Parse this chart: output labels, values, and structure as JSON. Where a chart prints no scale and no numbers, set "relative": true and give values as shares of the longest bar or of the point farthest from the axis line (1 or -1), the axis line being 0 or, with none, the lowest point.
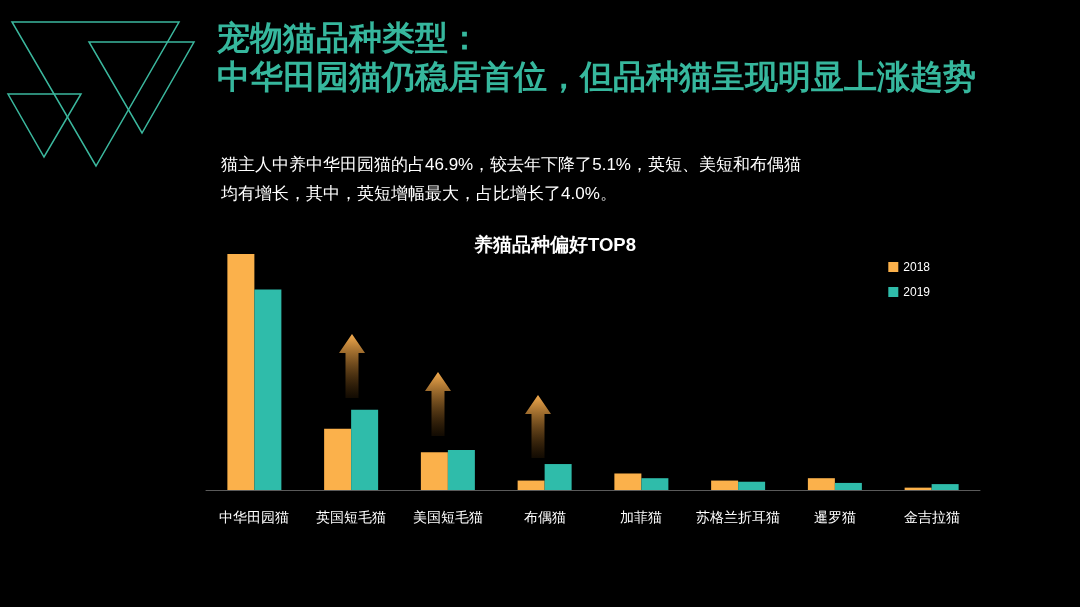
{
  "chart_data": {
    "type": "bar",
    "title": "宠物猫品种类型：",
    "subtitle": "中华田园猫仍稳居首位，但品种猫呈现明显上涨趋势",
    "annotations": [
      "猫主人中养中华田园猫的占46.9%，较去年下降了5.1%，英短、美短和布偶猫均有增长，其中，英短增幅最大，占比增长了4.0%。",
      "养猫品种偏好TOP8"
    ],
    "categories": [
      "中华田园猫",
      "英国短毛猫",
      "美国短毛猫",
      "布偶猫",
      "加菲猫",
      "苏格兰折耳猫",
      "暹罗猫",
      "金吉拉猫"
    ],
    "relative": true,
    "series": [
      {
        "name": "2018",
        "color": "#fbb14b",
        "values": [
          1,
          0.26,
          0.16,
          0.04,
          0.07,
          0.04,
          0.05,
          0.01
        ]
      },
      {
        "name": "2019",
        "color": "#2fbcaa",
        "values": [
          0.85,
          0.34,
          0.17,
          0.11,
          0.05,
          0.035,
          0.03,
          0.025
        ]
      }
    ],
    "legend": "top right"
  }
}
